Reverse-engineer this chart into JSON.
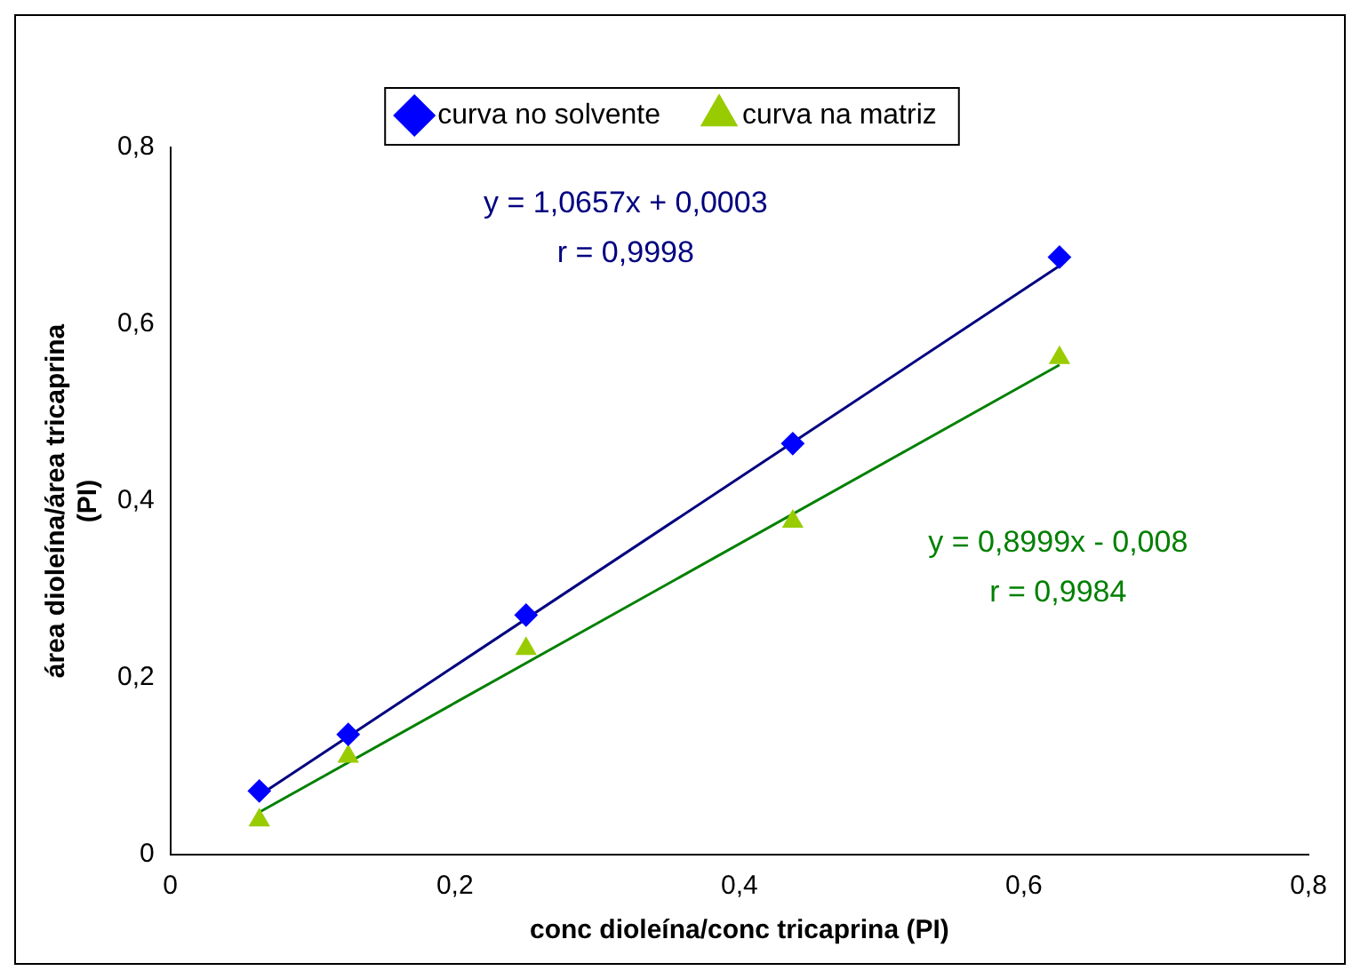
{
  "chart_data": {
    "type": "scatter",
    "xlabel": "conc dioleína/conc tricaprina (PI)",
    "ylabel": "área dioleína/área tricaprina (PI)",
    "series": [
      {
        "name": "curva no solvente",
        "color": "#0000ff",
        "marker": "diamond",
        "x": [
          0.0625,
          0.125,
          0.25,
          0.4375,
          0.625
        ],
        "values": [
          0.072,
          0.136,
          0.271,
          0.465,
          0.676
        ]
      },
      {
        "name": "curva na matriz",
        "color": "#99cc00",
        "marker": "triangle",
        "x": [
          0.0625,
          0.125,
          0.25,
          0.4375,
          0.625
        ],
        "values": [
          0.039,
          0.111,
          0.233,
          0.377,
          0.562
        ]
      },
      {
        "type": "line",
        "color": "#000080",
        "marker": "none",
        "x": [
          0.0625,
          0.625
        ],
        "values": [
          0.067,
          0.666
        ]
      },
      {
        "type": "line",
        "color": "#008000",
        "marker": "none",
        "x": [
          0.0625,
          0.625
        ],
        "values": [
          0.048,
          0.554
        ]
      }
    ],
    "annotations": [
      "y = 1,0657x + 0,0003",
      "r = 0,9998",
      "y = 0,8999x - 0,008",
      "r = 0,9984"
    ],
    "xlim": [
      0,
      0.8
    ],
    "xticks": [
      0,
      {
        "value": 0.2,
        "label": "0,2"
      },
      {
        "value": 0.4,
        "label": "0,4"
      },
      {
        "value": 0.6,
        "label": "0,6"
      },
      {
        "value": 0.8,
        "label": "0,8"
      }
    ],
    "ylim": [
      0,
      0.8
    ],
    "yticks": [
      0,
      {
        "value": 0.2,
        "label": "0,2"
      },
      {
        "value": 0.4,
        "label": "0,4"
      },
      {
        "value": 0.6,
        "label": "0,6"
      },
      {
        "value": 0.8,
        "label": "0,8"
      }
    ],
    "grid": false,
    "legend": "top"
  }
}
